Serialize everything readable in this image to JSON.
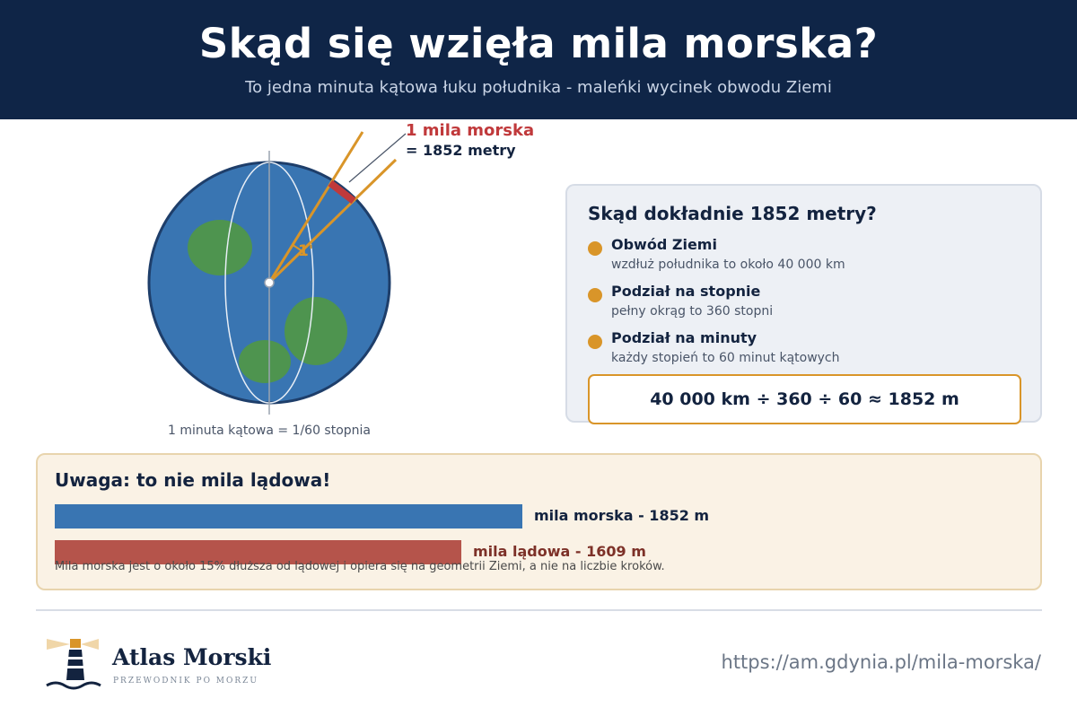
{
  "header": {
    "title": "Skąd się wzięła mila morska?",
    "subtitle": "To jedna minuta kątowa łuku południka - maleńki wycinek obwodu Ziemi"
  },
  "globe": {
    "label_title": "1 mila morska",
    "label_value": "= 1852 metry",
    "angle_marker": "1'",
    "caption": "1 minuta kątowa = 1/60 stopnia"
  },
  "explanation": {
    "title": "Skąd dokładnie 1852 metry?",
    "steps": [
      {
        "title": "Obwód Ziemi",
        "desc": "wzdłuż południka to około 40 000 km"
      },
      {
        "title": "Podział na stopnie",
        "desc": "pełny okrąg to 360 stopni"
      },
      {
        "title": "Podział na minuty",
        "desc": "każdy stopień to 60 minut kątowych"
      }
    ],
    "formula": "40 000 km ÷ 360 ÷ 60 ≈ 1852 m"
  },
  "comparison": {
    "title": "Uwaga: to nie mila lądowa!",
    "bars": [
      {
        "label": "mila morska - 1852 m",
        "value_m": 1852
      },
      {
        "label": "mila lądowa - 1609 m",
        "value_m": 1609
      }
    ],
    "note": "Mila morska jest o około 15% dłuższa od lądowej i opiera się na geometrii Ziemi, a nie na liczbie kroków."
  },
  "footer": {
    "brand": "Atlas Morski",
    "tagline": "PRZEWODNIK PO MORZU",
    "url": "https://am.gdynia.pl/mila-morska/"
  },
  "colors": {
    "header_bg": "#0f2547",
    "ocean": "#3975b2",
    "land": "#4e944f",
    "accent_red": "#c0393b",
    "accent_orange": "#d99529",
    "land_mile_bar": "#b5544b"
  },
  "icons": [
    "lighthouse-icon",
    "wave-icon",
    "bullet-dot-icon"
  ]
}
